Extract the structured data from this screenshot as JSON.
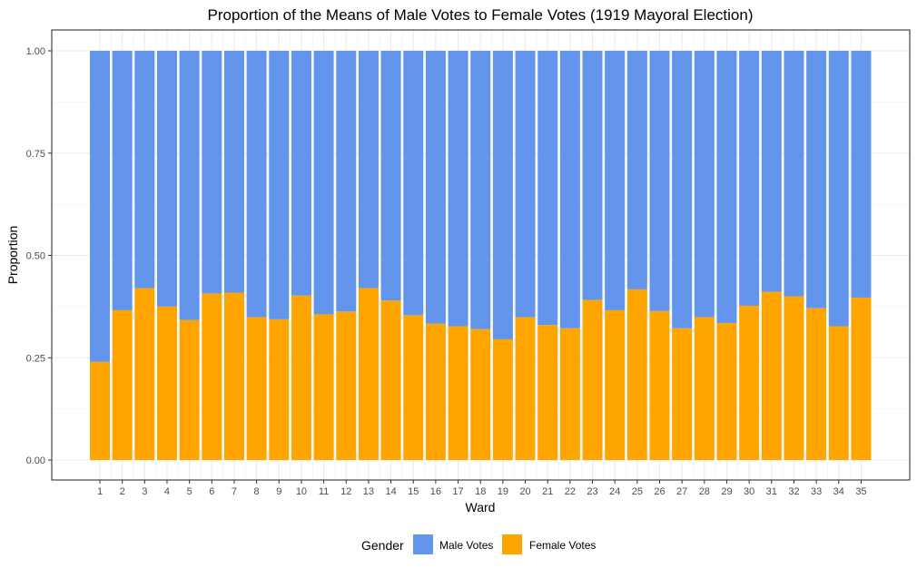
{
  "chart_data": {
    "type": "bar",
    "stacked": true,
    "normalized": true,
    "title": "Proportion of the Means of Male Votes to Female Votes (1919 Mayoral Election)",
    "xlabel": "Ward",
    "ylabel": "Proportion",
    "ylim": [
      0,
      1
    ],
    "yticks": [
      "0.00",
      "0.25",
      "0.50",
      "0.75",
      "1.00"
    ],
    "ytick_values": [
      0,
      0.25,
      0.5,
      0.75,
      1
    ],
    "categories": [
      "1",
      "2",
      "3",
      "4",
      "5",
      "6",
      "7",
      "8",
      "9",
      "10",
      "11",
      "12",
      "13",
      "14",
      "15",
      "16",
      "17",
      "18",
      "19",
      "20",
      "21",
      "22",
      "23",
      "24",
      "25",
      "26",
      "27",
      "28",
      "29",
      "30",
      "31",
      "32",
      "33",
      "34",
      "35"
    ],
    "grid": true,
    "legend": {
      "title": "Gender",
      "position": "bottom"
    },
    "series": [
      {
        "name": "Male Votes",
        "color": "#6495ED",
        "values": [
          0.76,
          0.634,
          0.58,
          0.625,
          0.658,
          0.593,
          0.591,
          0.651,
          0.656,
          0.598,
          0.644,
          0.637,
          0.58,
          0.61,
          0.646,
          0.667,
          0.673,
          0.68,
          0.705,
          0.651,
          0.67,
          0.678,
          0.609,
          0.634,
          0.583,
          0.636,
          0.678,
          0.651,
          0.665,
          0.623,
          0.589,
          0.6,
          0.629,
          0.673,
          0.603
        ]
      },
      {
        "name": "Female Votes",
        "color": "#FFA500",
        "values": [
          0.24,
          0.366,
          0.42,
          0.375,
          0.342,
          0.407,
          0.409,
          0.349,
          0.344,
          0.402,
          0.356,
          0.363,
          0.42,
          0.39,
          0.354,
          0.333,
          0.327,
          0.32,
          0.295,
          0.349,
          0.33,
          0.322,
          0.391,
          0.366,
          0.417,
          0.364,
          0.322,
          0.349,
          0.335,
          0.377,
          0.411,
          0.4,
          0.371,
          0.327,
          0.397
        ]
      }
    ]
  }
}
